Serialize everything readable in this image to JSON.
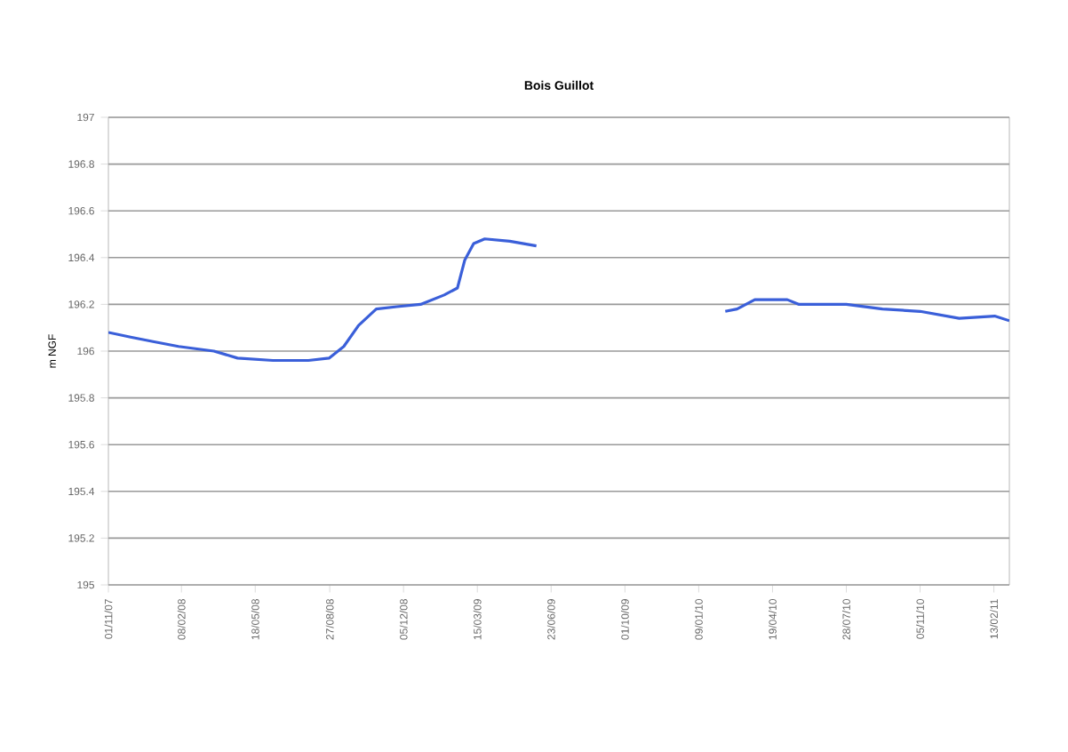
{
  "chart_data": {
    "type": "line",
    "title": "Bois Guillot",
    "ylabel": "m NGF",
    "xlim": [
      "2007-11-01",
      "2011-03-06"
    ],
    "ylim": [
      195,
      197
    ],
    "yticks": [
      195,
      195.2,
      195.4,
      195.6,
      195.8,
      196,
      196.2,
      196.4,
      196.6,
      196.8,
      197
    ],
    "xticks": [
      {
        "value": "2007-11-01",
        "label": "01/11/07"
      },
      {
        "value": "2008-02-08",
        "label": "08/02/08"
      },
      {
        "value": "2008-05-18",
        "label": "18/05/08"
      },
      {
        "value": "2008-08-27",
        "label": "27/08/08"
      },
      {
        "value": "2008-12-05",
        "label": "05/12/08"
      },
      {
        "value": "2009-03-15",
        "label": "15/03/09"
      },
      {
        "value": "2009-06-23",
        "label": "23/06/09"
      },
      {
        "value": "2009-10-01",
        "label": "01/10/09"
      },
      {
        "value": "2010-01-09",
        "label": "09/01/10"
      },
      {
        "value": "2010-04-19",
        "label": "19/04/10"
      },
      {
        "value": "2010-07-28",
        "label": "28/07/10"
      },
      {
        "value": "2010-11-05",
        "label": "05/11/10"
      },
      {
        "value": "2011-02-13",
        "label": "13/02/11"
      }
    ],
    "grid": "y",
    "marker": "none",
    "line_style": "solid",
    "series": [
      {
        "color": "#3a5fd9",
        "x": [
          "2007-11-01",
          "2007-12-01",
          "2008-01-02",
          "2008-02-04",
          "2008-03-23",
          "2008-04-24",
          "2008-06-11",
          "2008-07-29",
          "2008-08-26",
          "2008-09-15",
          "2008-10-05",
          "2008-10-29",
          "2008-11-26",
          "2008-12-28",
          "2009-01-29",
          "2009-02-16",
          "2009-02-26",
          "2009-03-10",
          "2009-03-25",
          "2009-04-28",
          "2009-06-03",
          "2009-10-01",
          "2010-02-14",
          "2010-03-02",
          "2010-03-26",
          "2010-05-09",
          "2010-05-25",
          "2010-07-28",
          "2010-09-15",
          "2010-11-05",
          "2010-12-28",
          "2011-02-14",
          "2011-03-06"
        ],
        "values": [
          196.08,
          196.06,
          196.04,
          196.02,
          196.0,
          195.97,
          195.96,
          195.96,
          195.97,
          196.02,
          196.11,
          196.18,
          196.19,
          196.2,
          196.24,
          196.27,
          196.39,
          196.46,
          196.48,
          196.47,
          196.45,
          null,
          196.17,
          196.18,
          196.22,
          196.22,
          196.2,
          196.2,
          196.18,
          196.17,
          196.14,
          196.15,
          196.13
        ]
      }
    ]
  }
}
